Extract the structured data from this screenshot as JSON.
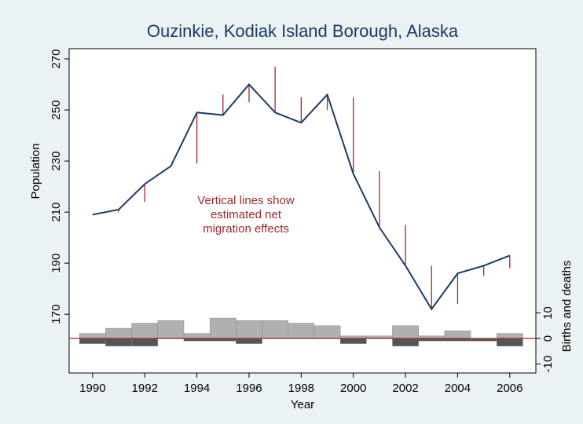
{
  "chart_data": {
    "type": "line",
    "title": "Ouzinkie, Kodiak Island Borough, Alaska",
    "x_label": "Year",
    "y_label": "Population",
    "y2_label": "Births and deaths",
    "annotation": [
      "Vertical lines show",
      "estimated net",
      "migration effects"
    ],
    "x": [
      1990,
      1991,
      1992,
      1993,
      1994,
      1995,
      1996,
      1997,
      1998,
      1999,
      2000,
      2001,
      2002,
      2003,
      2004,
      2005,
      2006
    ],
    "population": {
      "color": "#1c3a68",
      "values": [
        209,
        211,
        221,
        228,
        249,
        248,
        260,
        249,
        245,
        256,
        225,
        204,
        189,
        172,
        186,
        189,
        193
      ]
    },
    "migration_line_end": {
      "color": "#a0282d",
      "values": [
        null,
        210,
        214,
        null,
        229,
        256,
        253,
        267,
        255,
        250,
        255,
        226,
        205,
        189,
        174,
        185,
        188
      ]
    },
    "births": {
      "color": "#b0b0b0",
      "axis": "y2",
      "values": [
        2,
        4,
        6,
        7,
        2,
        8,
        7,
        7,
        6,
        5,
        1,
        1,
        5,
        1,
        3,
        0,
        2
      ]
    },
    "deaths": {
      "color": "#555555",
      "axis": "y2",
      "values": [
        -2,
        -3,
        -3,
        0,
        -1,
        -1,
        -2,
        0,
        0,
        0,
        -2,
        0,
        -3,
        -1,
        -1,
        -1,
        -3
      ]
    },
    "zero_line_color": "#a0282d",
    "xlim": [
      1989.1,
      2007
    ],
    "xticks": [
      1990,
      1992,
      1994,
      1996,
      1998,
      2000,
      2002,
      2004,
      2006
    ],
    "ylim": [
      147,
      274
    ],
    "yticks": [
      170,
      190,
      210,
      230,
      250,
      270
    ],
    "y2lim": [
      -13.5,
      113.5
    ],
    "y2ticks": [
      -10,
      0,
      10
    ]
  }
}
